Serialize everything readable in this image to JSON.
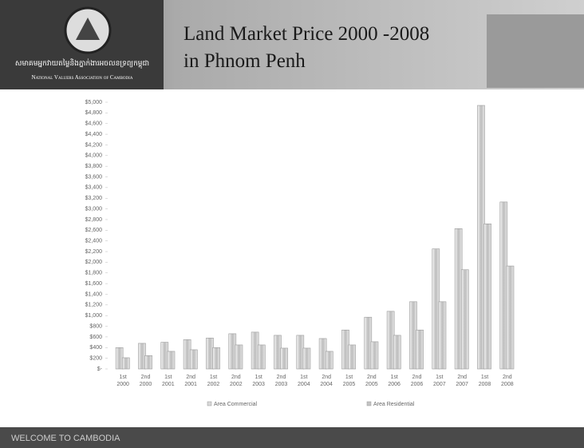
{
  "header": {
    "title_lines": [
      "Land Market Price 2000 -2008",
      "in Phnom Penh"
    ],
    "org_name_km": "សមាគមអ្នកវាយតម្លៃនិងភ្នាក់ងារអចលនទ្រព្យកម្ពុជា",
    "org_name_en": "National Valuers Association of Cambodia"
  },
  "chart_data": {
    "type": "bar",
    "categories": [
      "1st 2000",
      "2nd 2000",
      "1st 2001",
      "2nd 2001",
      "1st 2002",
      "2nd 2002",
      "1st 2003",
      "2nd 2003",
      "1st 2004",
      "2nd 2004",
      "1st 2005",
      "2nd 2005",
      "1st 2006",
      "2nd 2006",
      "1st 2007",
      "2nd 2007",
      "1st 2008",
      "2nd 2008"
    ],
    "series": [
      {
        "name": "Area Commercial",
        "color": "#d8d8d8",
        "values": [
          400,
          480,
          500,
          550,
          580,
          660,
          690,
          630,
          630,
          570,
          730,
          970,
          1080,
          1260,
          2250,
          2630,
          4940,
          3130
        ]
      },
      {
        "name": "Area Residential",
        "color": "#c4c4c4",
        "values": [
          210,
          250,
          330,
          360,
          400,
          450,
          450,
          390,
          390,
          330,
          450,
          510,
          630,
          730,
          1260,
          1860,
          2720,
          1930
        ]
      }
    ],
    "ylim": [
      0,
      5000
    ],
    "yticks": [
      {
        "value": 0,
        "label": "$-"
      },
      {
        "value": 200,
        "label": "$200"
      },
      {
        "value": 400,
        "label": "$400"
      },
      {
        "value": 600,
        "label": "$600"
      },
      {
        "value": 800,
        "label": "$800"
      },
      {
        "value": 1000,
        "label": "$1,000"
      },
      {
        "value": 1200,
        "label": "$1,200"
      },
      {
        "value": 1400,
        "label": "$1,400"
      },
      {
        "value": 1600,
        "label": "$1,600"
      },
      {
        "value": 1800,
        "label": "$1,800"
      },
      {
        "value": 2000,
        "label": "$2,000"
      },
      {
        "value": 2200,
        "label": "$2,200"
      },
      {
        "value": 2400,
        "label": "$2,400"
      },
      {
        "value": 2600,
        "label": "$2,600"
      },
      {
        "value": 2800,
        "label": "$2,800"
      },
      {
        "value": 3000,
        "label": "$3,000"
      },
      {
        "value": 3200,
        "label": "$3,200"
      },
      {
        "value": 3400,
        "label": "$3,400"
      },
      {
        "value": 3600,
        "label": "$3,600"
      },
      {
        "value": 3800,
        "label": "$3,800"
      },
      {
        "value": 4000,
        "label": "$4,000"
      },
      {
        "value": 4200,
        "label": "$4,200"
      },
      {
        "value": 4400,
        "label": "$4,400"
      },
      {
        "value": 4600,
        "label": "$4,600"
      },
      {
        "value": 4800,
        "label": "$4,800"
      },
      {
        "value": 5000,
        "label": "$5,000"
      }
    ],
    "grid": false,
    "legend": "bottom"
  },
  "footer": {
    "text": "WELCOME TO CAMBODIA"
  }
}
